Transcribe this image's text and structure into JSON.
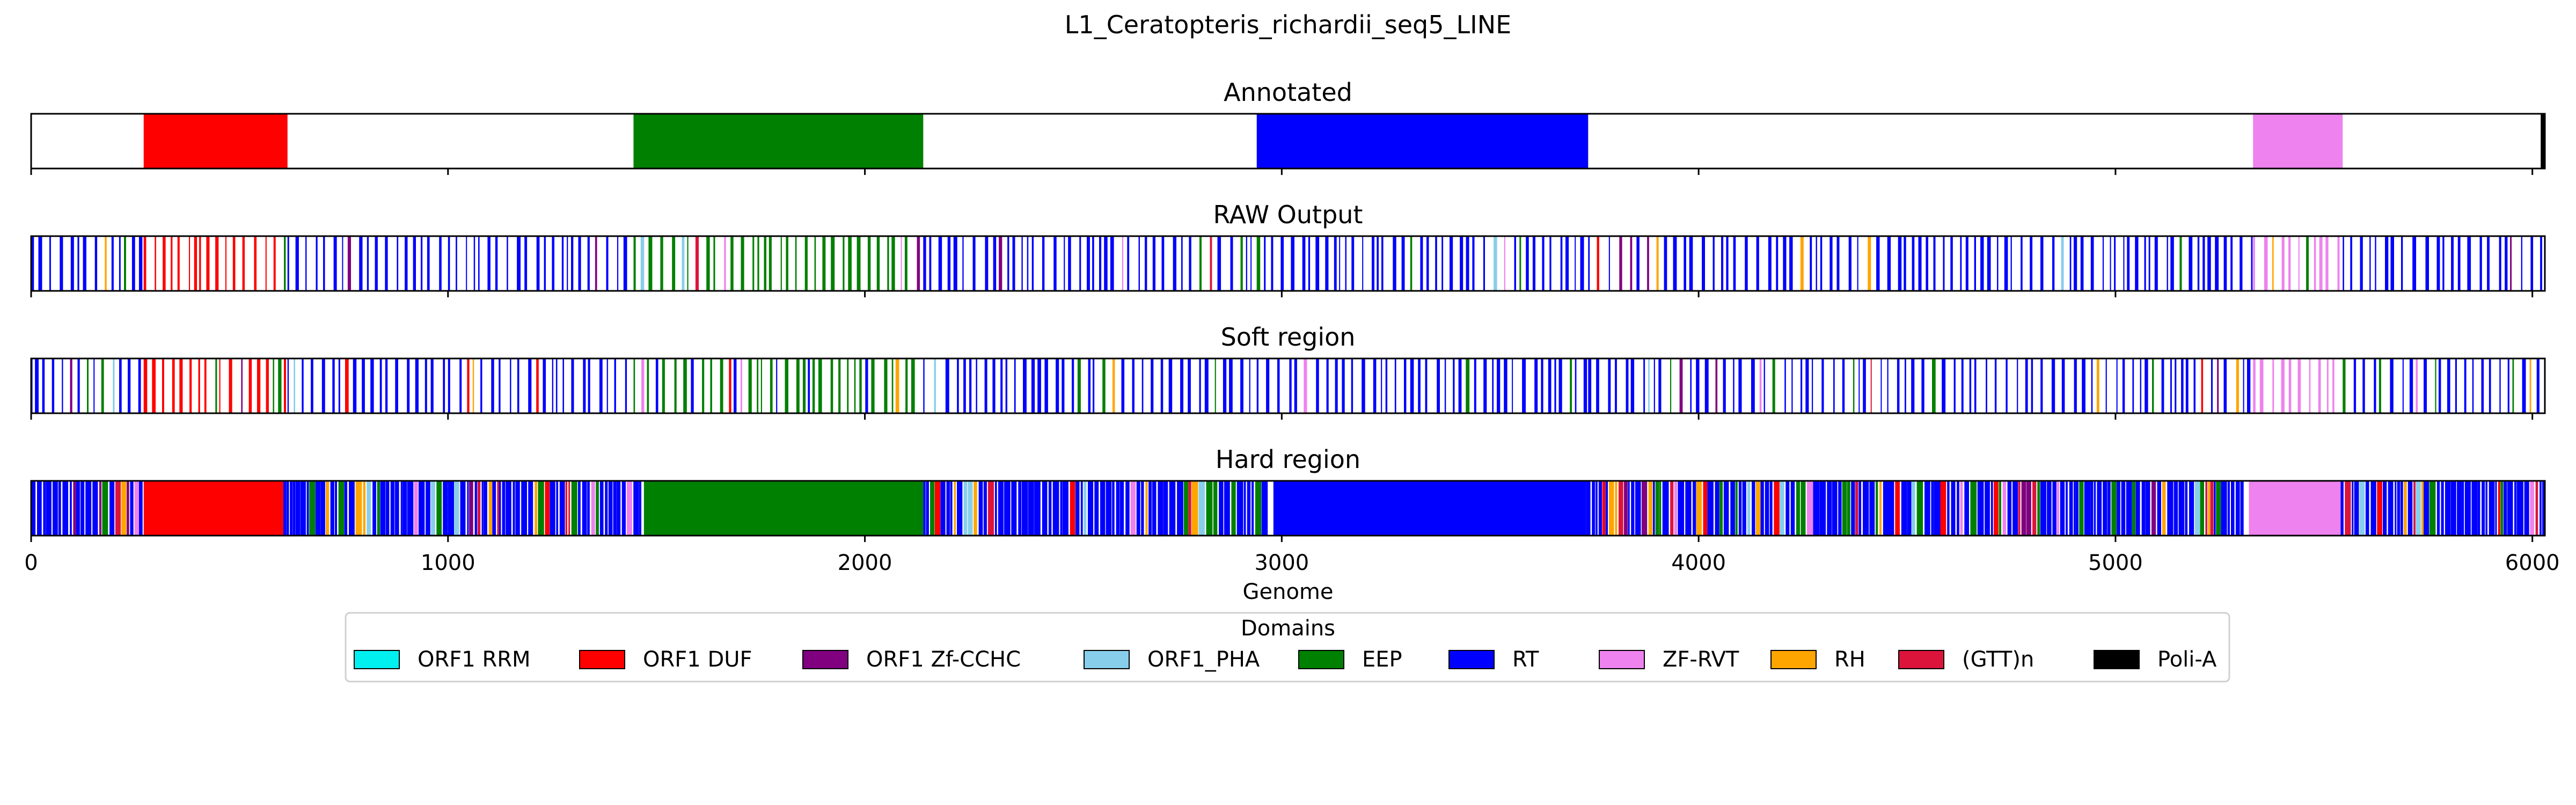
{
  "chart_data": {
    "type": "bar",
    "title": "L1_Ceratopteris_richardii_seq5_LINE",
    "xlabel": "Genome",
    "xlim": [
      0,
      6030
    ],
    "xticks": [
      0,
      1000,
      2000,
      3000,
      4000,
      5000,
      6000
    ],
    "grid": "x dashed (hard region only)",
    "legend": {
      "title": "Domains",
      "placement": "bottom-center",
      "entries": [
        {
          "name": "ORF1 RRM",
          "color": "#00f0f0"
        },
        {
          "name": "ORF1 DUF",
          "color": "#ff0000"
        },
        {
          "name": "ORF1 Zf-CCHC",
          "color": "#800080"
        },
        {
          "name": "ORF1_PHA",
          "color": "#87ceeb"
        },
        {
          "name": "EEP",
          "color": "#008000"
        },
        {
          "name": "RT",
          "color": "#0000ff"
        },
        {
          "name": "ZF-RVT",
          "color": "#ee82ee"
        },
        {
          "name": "RH",
          "color": "#ffa500"
        },
        {
          "name": "(GTT)n",
          "color": "#dc143c"
        },
        {
          "name": "Poli-A",
          "color": "#000000"
        }
      ]
    },
    "panels": [
      {
        "title": "Annotated",
        "segments": [
          {
            "domain": "ORF1 DUF",
            "start": 270,
            "end": 615
          },
          {
            "domain": "EEP",
            "start": 1445,
            "end": 2140
          },
          {
            "domain": "RT",
            "start": 2940,
            "end": 3735
          },
          {
            "domain": "ZF-RVT",
            "start": 5330,
            "end": 5545
          },
          {
            "domain": "Poli-A",
            "start": 6020,
            "end": 6030
          }
        ]
      },
      {
        "title": "RAW Output",
        "segments": [
          {
            "domain": "RT",
            "start": 0,
            "end": 270,
            "style": "sparse"
          },
          {
            "domain": "ORF1 DUF",
            "start": 270,
            "end": 615,
            "style": "sparse"
          },
          {
            "domain": "RT",
            "start": 615,
            "end": 1000,
            "style": "sparse"
          },
          {
            "domain": "RT",
            "start": 1000,
            "end": 1445,
            "style": "sparse"
          },
          {
            "domain": "EEP",
            "start": 1445,
            "end": 2140,
            "style": "sparse"
          },
          {
            "domain": "RT",
            "start": 2140,
            "end": 2940,
            "style": "sparse"
          },
          {
            "domain": "RT",
            "start": 2940,
            "end": 3735,
            "style": "sparse"
          },
          {
            "domain": "RT",
            "start": 3735,
            "end": 5330,
            "style": "sparse"
          },
          {
            "domain": "ZF-RVT",
            "start": 5330,
            "end": 5545,
            "style": "sparse"
          },
          {
            "domain": "RT",
            "start": 5545,
            "end": 6030,
            "style": "sparse"
          }
        ]
      },
      {
        "title": "Soft region",
        "segments": [
          {
            "domain": "RT",
            "start": 0,
            "end": 270,
            "style": "sparse"
          },
          {
            "domain": "ORF1 DUF",
            "start": 270,
            "end": 615,
            "style": "sparse"
          },
          {
            "domain": "RT",
            "start": 615,
            "end": 1000,
            "style": "sparse"
          },
          {
            "domain": "RT",
            "start": 1000,
            "end": 1445,
            "style": "sparse"
          },
          {
            "domain": "EEP",
            "start": 1445,
            "end": 2140,
            "style": "sparse"
          },
          {
            "domain": "RT",
            "start": 2140,
            "end": 2940,
            "style": "sparse"
          },
          {
            "domain": "RT",
            "start": 2940,
            "end": 3735,
            "style": "sparse"
          },
          {
            "domain": "RT",
            "start": 3735,
            "end": 5330,
            "style": "sparse"
          },
          {
            "domain": "ZF-RVT",
            "start": 5330,
            "end": 5545,
            "style": "sparse"
          },
          {
            "domain": "RT",
            "start": 5545,
            "end": 6030,
            "style": "sparse"
          }
        ]
      },
      {
        "title": "Hard region",
        "segments": [
          {
            "domain": "RT",
            "start": 0,
            "end": 270,
            "style": "dense"
          },
          {
            "domain": "ORF1 DUF",
            "start": 270,
            "end": 605,
            "style": "solid"
          },
          {
            "domain": "RT",
            "start": 605,
            "end": 1470,
            "style": "dense"
          },
          {
            "domain": "EEP",
            "start": 1470,
            "end": 2140,
            "style": "solid"
          },
          {
            "domain": "RT",
            "start": 2140,
            "end": 2980,
            "style": "dense"
          },
          {
            "domain": "RT",
            "start": 2980,
            "end": 3730,
            "style": "solid"
          },
          {
            "domain": "RT",
            "start": 3730,
            "end": 5320,
            "style": "dense"
          },
          {
            "domain": "ZF-RVT",
            "start": 5320,
            "end": 5540,
            "style": "solid"
          },
          {
            "domain": "RT",
            "start": 5540,
            "end": 6030,
            "style": "dense"
          }
        ]
      }
    ]
  }
}
